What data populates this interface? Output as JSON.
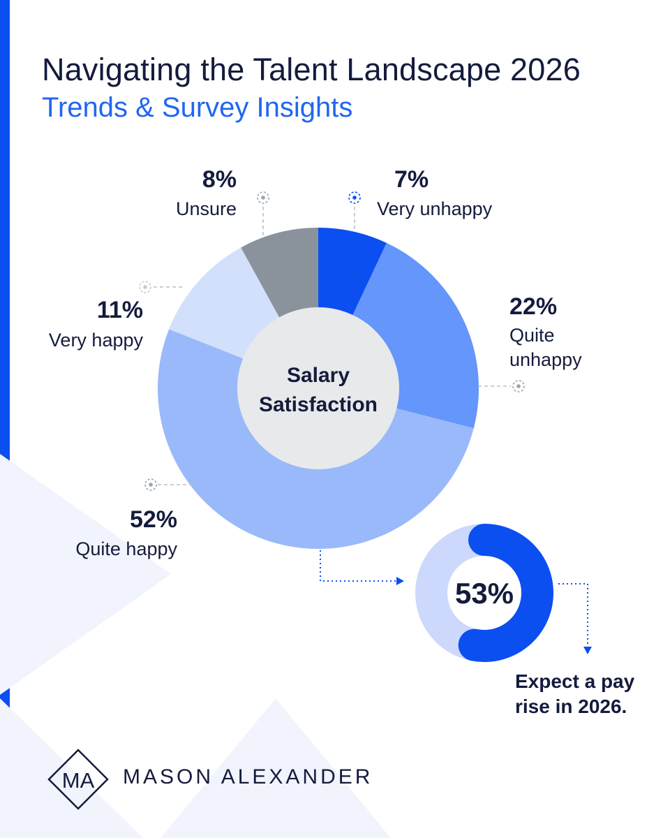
{
  "header": {
    "title": "Navigating the Talent Landscape 2026",
    "subtitle": "Trends & Survey Insights"
  },
  "colors": {
    "accent": "#0b4ff0",
    "title": "#141b3c",
    "subtitle": "#2166f2",
    "center_disk": "#e8e9ea"
  },
  "chart_data": [
    {
      "type": "pie",
      "title": "Salary Satisfaction",
      "center_label": [
        "Salary",
        "Satisfaction"
      ],
      "start": "12 o'clock, clockwise",
      "series": [
        {
          "name": "Very unhappy",
          "value": 7,
          "label": "7%",
          "color": "#0b4ff0"
        },
        {
          "name": "Quite unhappy",
          "value": 22,
          "label": "22%",
          "color": "#6496fb"
        },
        {
          "name": "Quite happy",
          "value": 52,
          "label": "52%",
          "color": "#9ab9fa"
        },
        {
          "name": "Very happy",
          "value": 11,
          "label": "11%",
          "color": "#d2e0fc"
        },
        {
          "name": "Unsure",
          "value": 8,
          "label": "8%",
          "color": "#8a929c"
        }
      ]
    },
    {
      "type": "pie",
      "title": "",
      "center_label": [
        "53%"
      ],
      "series": [
        {
          "name": "Expect a pay rise in 2026.",
          "value": 53,
          "label": "53%",
          "color": "#0b4ff0"
        },
        {
          "name": "",
          "value": 47,
          "label": "",
          "color": "#ccd9fc"
        }
      ],
      "caption": [
        "Expect a pay",
        "rise in 2026."
      ]
    }
  ],
  "logo": {
    "monogram": "MA",
    "name": "MASON ALEXANDER"
  }
}
